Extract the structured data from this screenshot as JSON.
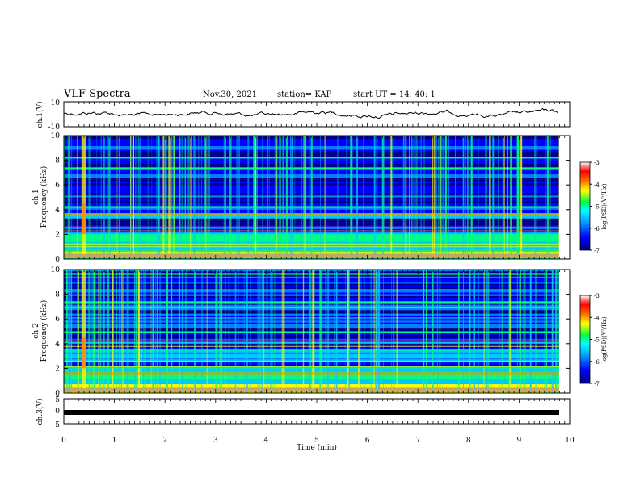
{
  "header": {
    "title": "VLF Spectra",
    "date": "Nov.30, 2021",
    "station": "station= KAP",
    "start": "start  UT  =   14: 40: 1"
  },
  "chart_data": [
    {
      "type": "line",
      "name": "ch1-waveform-panel",
      "ylabel": "ch.1(V)",
      "yticks": [
        "10",
        "-10"
      ],
      "ylim": [
        -10,
        10
      ],
      "xlim": [
        0,
        10
      ]
    },
    {
      "type": "heatmap",
      "name": "ch1-spectrogram",
      "ylabel": "ch.1\nFrequency (kHz)",
      "yticks": [
        "0",
        "2",
        "4",
        "6",
        "8",
        "10"
      ],
      "ylim": [
        0,
        10
      ],
      "xlim": [
        0,
        10
      ],
      "colorbar": {
        "label": "log(PSD)(V²/Hz)",
        "ticks": [
          "-3",
          "-4",
          "-5",
          "-6",
          "-7"
        ],
        "range": [
          -7,
          -3
        ]
      }
    },
    {
      "type": "heatmap",
      "name": "ch2-spectrogram",
      "ylabel": "ch.2\nFrequency (kHz)",
      "yticks": [
        "0",
        "2",
        "4",
        "6",
        "8",
        "10"
      ],
      "ylim": [
        0,
        10
      ],
      "xlim": [
        0,
        10
      ],
      "colorbar": {
        "label": "log(PSD)(V²/Hz)",
        "ticks": [
          "-3",
          "-4",
          "-5",
          "-6",
          "-7"
        ],
        "range": [
          -7,
          -3
        ]
      }
    },
    {
      "type": "line",
      "name": "ch3-waveform-panel",
      "ylabel": "ch.3(V)",
      "yticks": [
        "5",
        "0",
        "-5"
      ],
      "ylim": [
        -5,
        5
      ],
      "xlim": [
        0,
        10
      ],
      "xlabel": "Time (min)",
      "xticks": [
        "0",
        "1",
        "2",
        "3",
        "4",
        "5",
        "6",
        "7",
        "8",
        "9",
        "10"
      ]
    }
  ],
  "colors": {
    "colormap": [
      "#00008b",
      "#0000ff",
      "#0080ff",
      "#00c8ff",
      "#00ff80",
      "#ffff00",
      "#ff8000",
      "#ff0000",
      "#ffffff"
    ],
    "axis": "#000000"
  }
}
